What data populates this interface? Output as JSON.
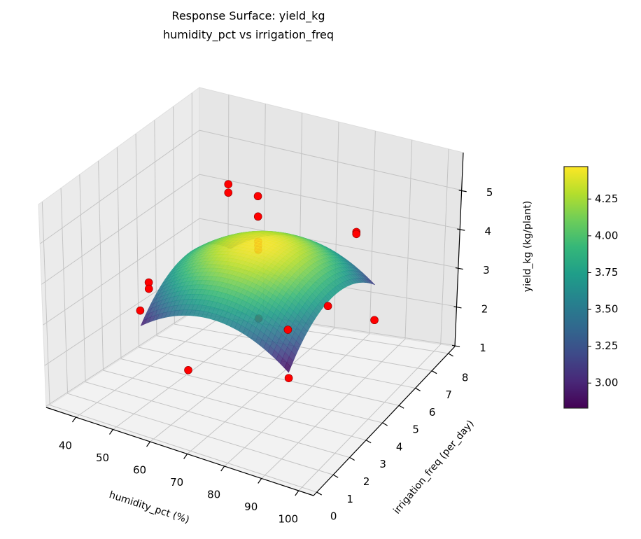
{
  "chart_data": {
    "type": "surface3d",
    "title": "Response Surface: yield_kg",
    "subtitle": "humidity_pct vs irrigation_freq",
    "xlabel": "humidity_pct (%)",
    "ylabel": "irrigation_freq (per_day)",
    "zlabel": "yield_kg (kg/plant)",
    "xlim": [
      32,
      104
    ],
    "ylim": [
      -0.2,
      8.4
    ],
    "zlim": [
      0.97,
      5.97
    ],
    "xticks": [
      40,
      50,
      60,
      70,
      80,
      90,
      100
    ],
    "yticks": [
      0,
      1,
      2,
      3,
      4,
      5,
      6,
      7,
      8
    ],
    "zticks": [
      1,
      2,
      3,
      4,
      5
    ],
    "grid": true,
    "surface": {
      "colormap": "viridis",
      "x_range": [
        50,
        90
      ],
      "y_range": [
        1.5,
        6.5
      ],
      "model": {
        "intercept": 4.45,
        "x_center": 70,
        "x_halfwidth": 20,
        "y_center": 4,
        "y_halfwidth": 2.5,
        "xx": -0.7,
        "yy": -0.75,
        "y": 0.12,
        "x": -0.05
      }
    },
    "scatter": {
      "color": "#ff0000",
      "points": [
        [
          70,
          4,
          5.69
        ],
        [
          70,
          4,
          5.2
        ],
        [
          70,
          4,
          4.6
        ],
        [
          70,
          4,
          4.5
        ],
        [
          70,
          4,
          4.4
        ],
        [
          70,
          4,
          2.75
        ],
        [
          52,
          6,
          4.9
        ],
        [
          52,
          6,
          4.7
        ],
        [
          87,
          6,
          4.5
        ],
        [
          87,
          6,
          4.45
        ],
        [
          90,
          6.5,
          2.2
        ],
        [
          40,
          4,
          2.95
        ],
        [
          40,
          4,
          2.8
        ],
        [
          70,
          0,
          2.9
        ],
        [
          70,
          8,
          1.65
        ],
        [
          90,
          1.5,
          2.7
        ],
        [
          90,
          1.5,
          3.85
        ],
        [
          50,
          1.5,
          3.3
        ]
      ]
    },
    "colorbar": {
      "range": [
        2.83,
        4.47
      ],
      "ticks": [
        "3.00",
        "3.25",
        "3.50",
        "3.75",
        "4.00",
        "4.25"
      ]
    }
  }
}
